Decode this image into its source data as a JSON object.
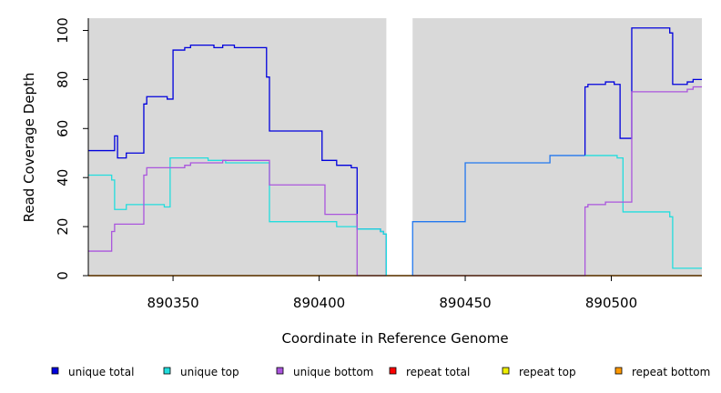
{
  "chart_data": {
    "type": "line",
    "title": "",
    "xlabel": "Coordinate in Reference Genome",
    "ylabel": "Read Coverage Depth",
    "xlim": [
      890321,
      890531
    ],
    "ylim": [
      0,
      105
    ],
    "x_ticks": [
      890350,
      890400,
      890450,
      890500
    ],
    "y_ticks": [
      0,
      20,
      40,
      60,
      80,
      100
    ],
    "gap_region": [
      890423,
      890432
    ],
    "grid": false,
    "legend_position": "bottom",
    "series": [
      {
        "name": "unique total",
        "color": "#0000dd",
        "points": [
          [
            890321,
            51
          ],
          [
            890330,
            51
          ],
          [
            890330,
            57
          ],
          [
            890331,
            57
          ],
          [
            890331,
            48
          ],
          [
            890334,
            48
          ],
          [
            890334,
            50
          ],
          [
            890340,
            50
          ],
          [
            890340,
            70
          ],
          [
            890341,
            70
          ],
          [
            890341,
            73
          ],
          [
            890348,
            73
          ],
          [
            890348,
            72
          ],
          [
            890350,
            72
          ],
          [
            890350,
            92
          ],
          [
            890354,
            92
          ],
          [
            890354,
            93
          ],
          [
            890356,
            93
          ],
          [
            890356,
            94
          ],
          [
            890364,
            94
          ],
          [
            890364,
            93
          ],
          [
            890367,
            93
          ],
          [
            890367,
            94
          ],
          [
            890371,
            94
          ],
          [
            890371,
            93
          ],
          [
            890382,
            93
          ],
          [
            890382,
            81
          ],
          [
            890383,
            81
          ],
          [
            890383,
            59
          ],
          [
            890401,
            59
          ],
          [
            890401,
            47
          ],
          [
            890406,
            47
          ],
          [
            890406,
            45
          ],
          [
            890411,
            45
          ],
          [
            890411,
            44
          ],
          [
            890413,
            44
          ],
          [
            890413,
            19
          ],
          [
            890421,
            19
          ],
          [
            890421,
            18
          ],
          [
            890422,
            18
          ],
          [
            890422,
            17
          ],
          [
            890423,
            17
          ],
          [
            890423,
            0
          ]
        ]
      },
      {
        "name": "unique top",
        "color": "#22dddd",
        "points": [
          [
            890321,
            41
          ],
          [
            890329,
            41
          ],
          [
            890329,
            39
          ],
          [
            890330,
            39
          ],
          [
            890330,
            27
          ],
          [
            890334,
            27
          ],
          [
            890334,
            29
          ],
          [
            890347,
            29
          ],
          [
            890347,
            28
          ],
          [
            890349,
            28
          ],
          [
            890349,
            48
          ],
          [
            890362,
            48
          ],
          [
            890362,
            47
          ],
          [
            890368,
            47
          ],
          [
            890368,
            46
          ],
          [
            890383,
            46
          ],
          [
            890383,
            22
          ],
          [
            890406,
            22
          ],
          [
            890406,
            20
          ],
          [
            890413,
            20
          ],
          [
            890413,
            19
          ],
          [
            890421,
            19
          ],
          [
            890421,
            18
          ],
          [
            890422,
            18
          ],
          [
            890422,
            17
          ],
          [
            890423,
            17
          ],
          [
            890423,
            0
          ]
        ]
      },
      {
        "name": "unique bottom",
        "color": "#aa55dd",
        "points": [
          [
            890321,
            10
          ],
          [
            890329,
            10
          ],
          [
            890329,
            18
          ],
          [
            890330,
            18
          ],
          [
            890330,
            21
          ],
          [
            890340,
            21
          ],
          [
            890340,
            41
          ],
          [
            890341,
            41
          ],
          [
            890341,
            44
          ],
          [
            890354,
            44
          ],
          [
            890354,
            45
          ],
          [
            890356,
            45
          ],
          [
            890356,
            46
          ],
          [
            890367,
            46
          ],
          [
            890367,
            47
          ],
          [
            890383,
            47
          ],
          [
            890383,
            37
          ],
          [
            890402,
            37
          ],
          [
            890402,
            25
          ],
          [
            890413,
            25
          ],
          [
            890413,
            0
          ],
          [
            890423,
            0
          ]
        ]
      },
      {
        "name": "repeat total",
        "color": "#ff0000",
        "points": [
          [
            890321,
            0
          ],
          [
            890531,
            0
          ]
        ]
      },
      {
        "name": "repeat top",
        "color": "#eeee00",
        "points": [
          [
            890321,
            0
          ],
          [
            890531,
            0
          ]
        ]
      },
      {
        "name": "repeat bottom",
        "color": "#ff9900",
        "points": [
          [
            890321,
            0
          ],
          [
            890531,
            0
          ]
        ]
      },
      {
        "name": "",
        "color": "#2277ee",
        "points": [
          [
            890432,
            0
          ],
          [
            890432,
            22
          ],
          [
            890450,
            22
          ],
          [
            890450,
            46
          ],
          [
            890479,
            46
          ],
          [
            890479,
            49
          ],
          [
            890491,
            49
          ]
        ]
      },
      {
        "name": "",
        "color": "#0000dd",
        "points": [
          [
            890491,
            49
          ],
          [
            890491,
            77
          ],
          [
            890492,
            77
          ],
          [
            890492,
            78
          ],
          [
            890498,
            78
          ],
          [
            890498,
            79
          ],
          [
            890501,
            79
          ],
          [
            890501,
            78
          ],
          [
            890503,
            78
          ],
          [
            890503,
            56
          ],
          [
            890507,
            56
          ],
          [
            890507,
            101
          ],
          [
            890520,
            101
          ],
          [
            890520,
            99
          ],
          [
            890521,
            99
          ],
          [
            890521,
            78
          ],
          [
            890526,
            78
          ],
          [
            890526,
            79
          ],
          [
            890528,
            79
          ],
          [
            890528,
            80
          ],
          [
            890531,
            80
          ]
        ]
      },
      {
        "name": "",
        "color": "#22dddd",
        "points": [
          [
            890491,
            49
          ],
          [
            890502,
            49
          ],
          [
            890502,
            48
          ],
          [
            890504,
            48
          ],
          [
            890504,
            26
          ],
          [
            890520,
            26
          ],
          [
            890520,
            24
          ],
          [
            890521,
            24
          ],
          [
            890521,
            3
          ],
          [
            890531,
            3
          ]
        ]
      },
      {
        "name": "",
        "color": "#aa55dd",
        "points": [
          [
            890432,
            0
          ],
          [
            890491,
            0
          ],
          [
            890491,
            28
          ],
          [
            890492,
            28
          ],
          [
            890492,
            29
          ],
          [
            890498,
            29
          ],
          [
            890498,
            30
          ],
          [
            890507,
            30
          ],
          [
            890507,
            75
          ],
          [
            890526,
            75
          ],
          [
            890526,
            76
          ],
          [
            890528,
            76
          ],
          [
            890528,
            77
          ],
          [
            890531,
            77
          ]
        ]
      }
    ]
  },
  "legend": [
    {
      "label": "unique total",
      "color": "#0000dd"
    },
    {
      "label": "unique top",
      "color": "#22dddd"
    },
    {
      "label": "unique bottom",
      "color": "#aa55dd"
    },
    {
      "label": "repeat total",
      "color": "#ff0000"
    },
    {
      "label": "repeat top",
      "color": "#eeee00"
    },
    {
      "label": "repeat bottom",
      "color": "#ff9900"
    }
  ]
}
